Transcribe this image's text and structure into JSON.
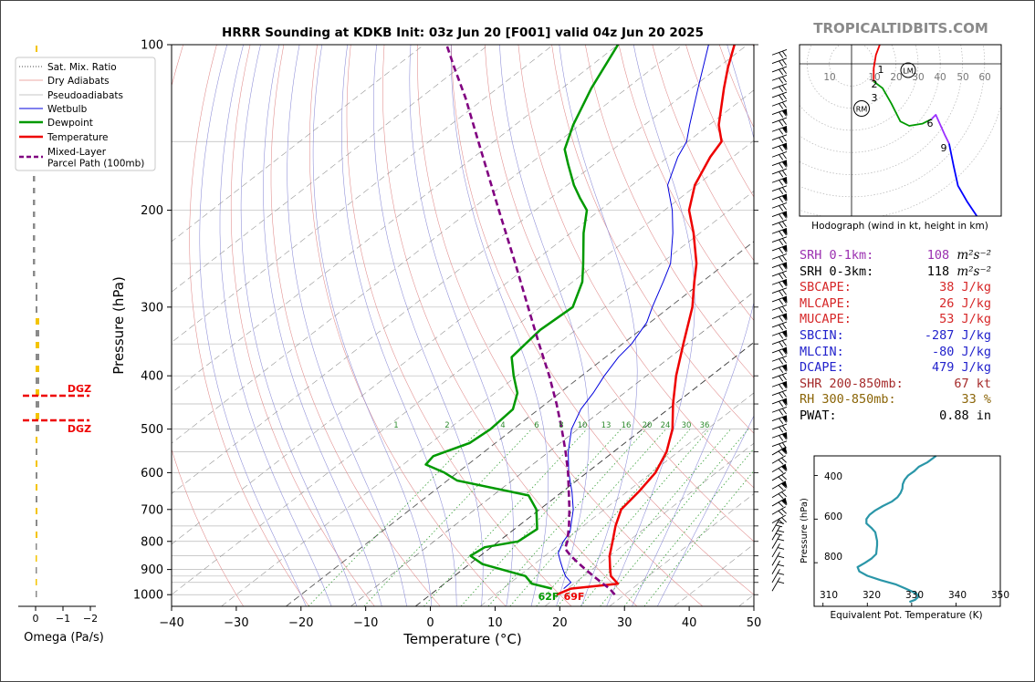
{
  "title": "HRRR Sounding at KDKB Init: 03z Jun 20 [F001] valid 04z Jun 20 2025",
  "watermark": "TROPICALTIDBITS.COM",
  "skewt": {
    "xlabel": "Temperature (°C)",
    "ylabel": "Pressure (hPa)",
    "xlim": [
      -40,
      50
    ],
    "ylim": [
      1050,
      100
    ],
    "x_ticks": [
      "−40",
      "−30",
      "−20",
      "−10",
      "0",
      "10",
      "20",
      "30",
      "40",
      "50"
    ],
    "y_ticks": [
      "100",
      "200",
      "300",
      "400",
      "500",
      "600",
      "700",
      "800",
      "900",
      "1000"
    ],
    "mixing_ratio_labels": [
      "1",
      "2",
      "4",
      "6",
      "8",
      "10",
      "13",
      "16",
      "20",
      "24",
      "30",
      "36"
    ],
    "surface_dewpoint_label": "62F",
    "surface_temperature_label": "69F"
  },
  "legend": [
    {
      "label": "Sat. Mix. Ratio",
      "color": "#4a4a4a",
      "style": "dotted"
    },
    {
      "label": "Dry Adiabats",
      "color": "#d9534f",
      "style": "thin"
    },
    {
      "label": "Pseudoadiabats",
      "color": "#8a8a8a",
      "style": "thin"
    },
    {
      "label": "Wetbulb",
      "color": "#0000dd",
      "style": "thin"
    },
    {
      "label": "Dewpoint",
      "color": "#009900",
      "style": "thick"
    },
    {
      "label": "Temperature",
      "color": "#ee0000",
      "style": "thick"
    },
    {
      "label": "Mixed-Layer\nParcel Path (100mb)",
      "color": "#800080",
      "style": "dashed"
    }
  ],
  "omega": {
    "xlabel": "Omega (Pa/s)",
    "ticks": [
      "0",
      "−1",
      "−2"
    ],
    "dgz_label": "DGZ"
  },
  "hodograph": {
    "caption": "Hodograph (wind in kt, height in km)",
    "ring_labels": [
      "10",
      "10",
      "20",
      "30",
      "40",
      "50",
      "60"
    ],
    "height_labels": [
      "1",
      "2",
      "3",
      "6",
      "9"
    ],
    "markers": [
      "LM",
      "RM"
    ],
    "colors": [
      "#ee0000",
      "#009900",
      "#9b30ff",
      "#0000ff"
    ]
  },
  "stats": [
    {
      "label": "SRH 0-1km:",
      "value": "108",
      "unit": "m²s⁻²",
      "color": "#9b30b0"
    },
    {
      "label": "SRH 0-3km:",
      "value": "118",
      "unit": "m²s⁻²",
      "color": "#000000"
    },
    {
      "label": "SBCAPE:",
      "value": "38 J/kg",
      "color": "#d62728"
    },
    {
      "label": "MLCAPE:",
      "value": "26 J/kg",
      "color": "#d62728"
    },
    {
      "label": "MUCAPE:",
      "value": "53 J/kg",
      "color": "#d62728"
    },
    {
      "label": "SBCIN:",
      "value": "-287 J/kg",
      "color": "#2222cc"
    },
    {
      "label": "MLCIN:",
      "value": "-80 J/kg",
      "color": "#2222cc"
    },
    {
      "label": "DCAPE:",
      "value": "479 J/kg",
      "color": "#2222cc"
    },
    {
      "label": "SHR 200-850mb:",
      "value": "67 kt",
      "color": "#a52a2a"
    },
    {
      "label": "RH 300-850mb:",
      "value": "33 %",
      "color": "#8b6508"
    },
    {
      "label": "PWAT:",
      "value": "0.88 in",
      "color": "#000000"
    }
  ],
  "theta_e": {
    "xlabel": "Equivalent Pot. Temperature (K)",
    "ylabel": "Pressure (hPa)",
    "x_ticks": [
      "310",
      "320",
      "330",
      "340",
      "350"
    ],
    "y_ticks": [
      "400",
      "600",
      "800"
    ]
  },
  "chart_data": [
    {
      "type": "line",
      "title": "HRRR Sounding at KDKB Init: 03z Jun 20 [F001] valid 04z Jun 20 2025",
      "xlabel": "Temperature (°C)",
      "ylabel": "Pressure (hPa)",
      "xlim": [
        -40,
        50
      ],
      "ylim": [
        1050,
        100
      ],
      "skew_deg_per_log_decade": 109,
      "grid": true,
      "legend": "top-left",
      "series": [
        {
          "name": "Temperature",
          "color": "#ee0000",
          "points": [
            [
              1000,
              19.5
            ],
            [
              975,
              20.5
            ],
            [
              955,
              26.8
            ],
            [
              925,
              24.2
            ],
            [
              900,
              22.8
            ],
            [
              850,
              20.0
            ],
            [
              800,
              17.6
            ],
            [
              750,
              15.0
            ],
            [
              700,
              12.6
            ],
            [
              650,
              11.8
            ],
            [
              600,
              10.6
            ],
            [
              550,
              8.2
            ],
            [
              500,
              4.6
            ],
            [
              450,
              -0.3
            ],
            [
              400,
              -5.4
            ],
            [
              350,
              -10.6
            ],
            [
              300,
              -16.5
            ],
            [
              270,
              -21.2
            ],
            [
              250,
              -24.5
            ],
            [
              220,
              -31.0
            ],
            [
              200,
              -36.2
            ],
            [
              180,
              -40.3
            ],
            [
              160,
              -43.5
            ],
            [
              150,
              -44.8
            ],
            [
              140,
              -48.5
            ],
            [
              120,
              -55.0
            ],
            [
              110,
              -58.5
            ],
            [
              100,
              -62.0
            ]
          ]
        },
        {
          "name": "Dewpoint",
          "color": "#009900",
          "points": [
            [
              975,
              17.6
            ],
            [
              955,
              13.5
            ],
            [
              925,
              11.0
            ],
            [
              880,
              2.0
            ],
            [
              850,
              -1.5
            ],
            [
              820,
              -1.0
            ],
            [
              800,
              3.0
            ],
            [
              760,
              3.5
            ],
            [
              700,
              -0.5
            ],
            [
              660,
              -4.5
            ],
            [
              620,
              -18.5
            ],
            [
              600,
              -22.0
            ],
            [
              580,
              -26.5
            ],
            [
              560,
              -27.0
            ],
            [
              530,
              -24.0
            ],
            [
              500,
              -23.5
            ],
            [
              460,
              -24.0
            ],
            [
              430,
              -26.5
            ],
            [
              400,
              -30.5
            ],
            [
              370,
              -34.5
            ],
            [
              350,
              -35.0
            ],
            [
              330,
              -35.5
            ],
            [
              300,
              -35.0
            ],
            [
              270,
              -38.5
            ],
            [
              250,
              -42.0
            ],
            [
              220,
              -48.0
            ],
            [
              200,
              -52.0
            ],
            [
              190,
              -55.5
            ],
            [
              180,
              -59.0
            ],
            [
              165,
              -64.0
            ],
            [
              155,
              -67.5
            ],
            [
              140,
              -71.0
            ],
            [
              120,
              -75.5
            ],
            [
              100,
              -80.0
            ]
          ]
        },
        {
          "name": "Wetbulb",
          "color": "#0000dd",
          "points": [
            [
              975,
              19.4
            ],
            [
              950,
              19.3
            ],
            [
              925,
              17.2
            ],
            [
              900,
              15.5
            ],
            [
              870,
              13.5
            ],
            [
              840,
              11.5
            ],
            [
              800,
              10.0
            ],
            [
              770,
              9.2
            ],
            [
              700,
              5.2
            ],
            [
              650,
              1.5
            ],
            [
              600,
              -2.8
            ],
            [
              550,
              -7.0
            ],
            [
              500,
              -11.0
            ],
            [
              460,
              -13.5
            ],
            [
              430,
              -14.8
            ],
            [
              400,
              -16.5
            ],
            [
              370,
              -18.0
            ],
            [
              350,
              -18.6
            ],
            [
              320,
              -20.5
            ],
            [
              300,
              -22.7
            ],
            [
              270,
              -26.0
            ],
            [
              250,
              -28.5
            ],
            [
              220,
              -34.2
            ],
            [
              200,
              -38.8
            ],
            [
              180,
              -44.5
            ],
            [
              160,
              -48.5
            ],
            [
              150,
              -50.2
            ],
            [
              140,
              -53.0
            ],
            [
              120,
              -59.0
            ],
            [
              100,
              -66.0
            ]
          ]
        },
        {
          "name": "Mixed-Layer\nParcel Path (100mb)",
          "color": "#800080",
          "dashed": true,
          "points": [
            [
              1000,
              28.5
            ],
            [
              975,
              26.5
            ],
            [
              950,
              24.0
            ],
            [
              925,
              21.5
            ],
            [
              900,
              19.0
            ],
            [
              875,
              16.5
            ],
            [
              850,
              14.0
            ],
            [
              825,
              11.7
            ],
            [
              800,
              10.6
            ],
            [
              750,
              7.8
            ],
            [
              700,
              4.6
            ],
            [
              650,
              1.0
            ],
            [
              600,
              -2.9
            ],
            [
              550,
              -7.4
            ],
            [
              500,
              -12.5
            ],
            [
              450,
              -18.3
            ],
            [
              400,
              -25.0
            ],
            [
              350,
              -32.9
            ],
            [
              300,
              -41.9
            ],
            [
              250,
              -52.5
            ],
            [
              200,
              -65.6
            ],
            [
              150,
              -82.4
            ],
            [
              125,
              -93.0
            ],
            [
              110,
              -100.8
            ],
            [
              100,
              -106.5
            ]
          ]
        }
      ]
    },
    {
      "type": "line",
      "title": "Hodograph (wind in kt, height in km)",
      "series": [
        {
          "name": "0-1 km",
          "color": "#ee0000",
          "points": [
            [
              1,
              18
            ],
            [
              6,
              19
            ],
            [
              10,
              18
            ],
            [
              14,
              14
            ],
            [
              16,
              12
            ]
          ]
        },
        {
          "name": "1-3 km",
          "color": "#ee0000",
          "points": [
            [
              14,
              12
            ],
            [
              11,
              4
            ],
            [
              10,
              -2
            ],
            [
              10,
              -8
            ]
          ]
        },
        {
          "name": "3-6 km",
          "color": "#009900",
          "points": [
            [
              10,
              -8
            ],
            [
              14,
              -11
            ],
            [
              18,
              -18
            ],
            [
              22,
              -26
            ],
            [
              26,
              -28
            ],
            [
              32,
              -27
            ],
            [
              36,
              -25
            ]
          ]
        },
        {
          "name": "6-9 km",
          "color": "#9b30ff",
          "points": [
            [
              36,
              -25
            ],
            [
              38,
              -23
            ],
            [
              42,
              -32
            ],
            [
              44,
              -36
            ]
          ]
        },
        {
          "name": "9+ km",
          "color": "#0000ff",
          "points": [
            [
              44,
              -36
            ],
            [
              46,
              -46
            ],
            [
              48,
              -55
            ],
            [
              52,
              -62
            ],
            [
              56,
              -68
            ],
            [
              58,
              -71
            ]
          ]
        }
      ]
    },
    {
      "type": "line",
      "title": "",
      "xlabel": "Equivalent Pot. Temperature (K)",
      "ylabel": "Pressure (hPa)",
      "xlim": [
        308,
        350
      ],
      "ylim": [
        1000,
        310
      ],
      "series": [
        {
          "name": "",
          "color": "#2a96a8",
          "points": [
            [
              310,
              335.5
            ],
            [
              340,
              333.5
            ],
            [
              360,
              331.6
            ],
            [
              380,
              330.6
            ],
            [
              400,
              329.2
            ],
            [
              420,
              328.4
            ],
            [
              440,
              328.0
            ],
            [
              460,
              327.9
            ],
            [
              480,
              327.5
            ],
            [
              500,
              326.8
            ],
            [
              520,
              325.5
            ],
            [
              540,
              323.5
            ],
            [
              560,
              321.8
            ],
            [
              580,
              320.5
            ],
            [
              600,
              319.8
            ],
            [
              620,
              319.8
            ],
            [
              640,
              320.9
            ],
            [
              660,
              321.8
            ],
            [
              680,
              322.0
            ],
            [
              700,
              322.2
            ],
            [
              720,
              322.2
            ],
            [
              740,
              322.1
            ],
            [
              760,
              322.0
            ],
            [
              780,
              321.0
            ],
            [
              800,
              319.5
            ],
            [
              820,
              317.8
            ],
            [
              840,
              318.2
            ],
            [
              860,
              320.0
            ],
            [
              880,
              323.0
            ],
            [
              900,
              326.5
            ],
            [
              920,
              328.8
            ],
            [
              940,
              331.0
            ],
            [
              955,
              331.6
            ],
            [
              970,
              330.8
            ],
            [
              980,
              329.5
            ]
          ]
        }
      ]
    }
  ]
}
